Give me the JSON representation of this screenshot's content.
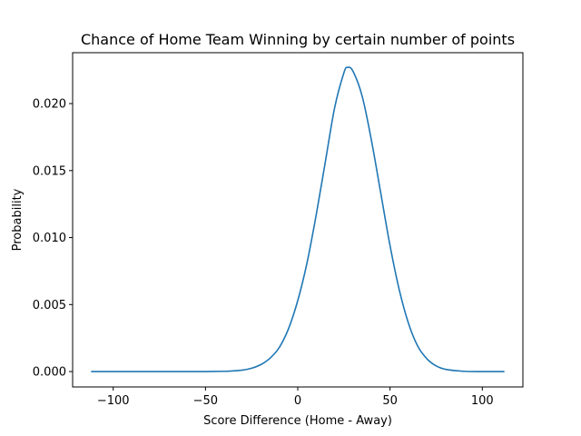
{
  "chart_data": {
    "type": "line",
    "title": "Chance of Home Team Winning by certain number of points",
    "xlabel": "Score Difference (Home - Away)",
    "ylabel": "Probability",
    "xlim": [
      -122,
      122
    ],
    "ylim": [
      -0.00115,
      0.0238
    ],
    "grid": false,
    "legend": "none",
    "x_ticks": [
      -100,
      -50,
      0,
      50,
      100
    ],
    "x_tick_labels": [
      "−100",
      "−50",
      "0",
      "50",
      "100"
    ],
    "y_ticks": [
      0.0,
      0.005,
      0.01,
      0.015,
      0.02
    ],
    "y_tick_labels": [
      "0.000",
      "0.005",
      "0.010",
      "0.015",
      "0.020"
    ],
    "series": [
      {
        "color": "#1f77b4",
        "x": [
          -112,
          -100,
          -90,
          -80,
          -70,
          -60,
          -50,
          -40,
          -35,
          -30,
          -25,
          -20,
          -15,
          -10,
          -5,
          0,
          5,
          10,
          15,
          20,
          25,
          27,
          30,
          35,
          40,
          45,
          50,
          55,
          60,
          65,
          70,
          75,
          80,
          90,
          100,
          112
        ],
        "y": [
          0.0,
          0.0,
          0.0,
          0.0,
          0.0,
          0.0,
          0.0,
          2e-05,
          5e-05,
          0.00011,
          0.00025,
          0.00052,
          0.001,
          0.0018,
          0.0032,
          0.0053,
          0.0081,
          0.0117,
          0.0157,
          0.0197,
          0.0223,
          0.0227,
          0.0224,
          0.0205,
          0.0172,
          0.0133,
          0.0094,
          0.0061,
          0.0036,
          0.0019,
          0.00095,
          0.00042,
          0.00017,
          2e-05,
          0.0,
          0.0
        ]
      }
    ]
  }
}
